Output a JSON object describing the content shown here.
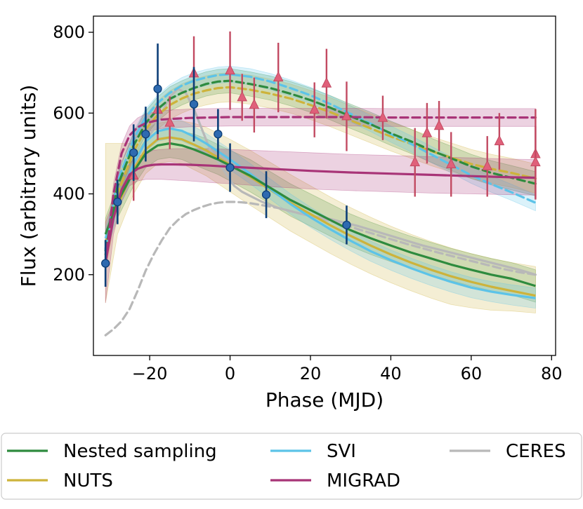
{
  "chart_data": {
    "type": "line",
    "xlabel": "Phase (MJD)",
    "ylabel": "Flux (arbitrary units)",
    "xlim": [
      -34,
      81
    ],
    "ylim": [
      0,
      840
    ],
    "xticks": [
      -20,
      0,
      20,
      40,
      60,
      80
    ],
    "xtick_labels": [
      "−20",
      "0",
      "20",
      "40",
      "60",
      "80"
    ],
    "yticks": [
      200,
      400,
      600,
      800
    ],
    "ytick_labels": [
      "200",
      "400",
      "600",
      "800"
    ],
    "grid": false,
    "legend_position": "bottom",
    "colors": {
      "nested": "#2e8b3e",
      "nuts": "#cdb33b",
      "svi": "#5cc3e8",
      "migrad": "#a83477",
      "ceres": "#b8b8b8",
      "blue_points": "#2e6ab0",
      "blue_edge": "#0d3f78",
      "red_points": "#e0607a",
      "red_err": "#c24a62"
    },
    "series": [
      {
        "key": "nested",
        "name": "Nested sampling",
        "band": "blue",
        "x": [
          -31,
          -28,
          -24,
          -21,
          -18,
          -15,
          -12,
          -9,
          -6,
          -3,
          0,
          5,
          10,
          15,
          20,
          25,
          30,
          35,
          40,
          45,
          50,
          55,
          60,
          65,
          70,
          76
        ],
        "values": [
          300,
          380,
          455,
          500,
          520,
          525,
          520,
          510,
          498,
          485,
          470,
          445,
          415,
          385,
          360,
          335,
          310,
          290,
          272,
          255,
          240,
          225,
          212,
          200,
          190,
          172
        ],
        "lower": [
          260,
          340,
          420,
          465,
          485,
          490,
          485,
          472,
          460,
          448,
          432,
          405,
          375,
          345,
          320,
          295,
          270,
          250,
          232,
          215,
          200,
          185,
          172,
          160,
          150,
          132
        ],
        "upper": [
          340,
          420,
          490,
          535,
          555,
          560,
          555,
          548,
          537,
          522,
          508,
          485,
          455,
          425,
          400,
          375,
          350,
          330,
          312,
          295,
          280,
          265,
          252,
          240,
          230,
          212
        ]
      },
      {
        "key": "nested",
        "name": "Nested sampling (red band)",
        "band": "red",
        "dashed": true,
        "x": [
          -31,
          -28,
          -24,
          -21,
          -18,
          -15,
          -12,
          -9,
          -6,
          -3,
          0,
          5,
          10,
          15,
          20,
          25,
          30,
          35,
          40,
          45,
          50,
          55,
          60,
          65,
          70,
          76
        ],
        "values": [
          260,
          420,
          520,
          575,
          610,
          635,
          650,
          662,
          672,
          678,
          680,
          672,
          662,
          648,
          632,
          613,
          592,
          572,
          550,
          530,
          508,
          488,
          468,
          452,
          440,
          425
        ],
        "lower": [
          230,
          390,
          490,
          545,
          580,
          605,
          620,
          632,
          642,
          648,
          650,
          642,
          632,
          618,
          602,
          583,
          562,
          542,
          520,
          500,
          478,
          458,
          438,
          422,
          410,
          395
        ],
        "upper": [
          290,
          450,
          550,
          605,
          640,
          665,
          680,
          692,
          702,
          708,
          710,
          702,
          692,
          678,
          662,
          643,
          622,
          602,
          580,
          560,
          538,
          518,
          498,
          482,
          470,
          455
        ]
      },
      {
        "key": "nuts",
        "name": "NUTS",
        "band": "blue",
        "x": [
          -31,
          -28,
          -24,
          -21,
          -18,
          -15,
          -12,
          -9,
          -6,
          -3,
          0,
          5,
          10,
          15,
          20,
          25,
          30,
          35,
          40,
          45,
          50,
          55,
          60,
          65,
          70,
          76
        ],
        "values": [
          280,
          370,
          460,
          510,
          535,
          540,
          535,
          522,
          508,
          490,
          472,
          442,
          410,
          378,
          350,
          322,
          296,
          272,
          250,
          230,
          212,
          196,
          182,
          170,
          160,
          148
        ],
        "lower": [
          130,
          300,
          400,
          450,
          475,
          480,
          475,
          460,
          445,
          425,
          405,
          372,
          340,
          308,
          280,
          252,
          226,
          202,
          180,
          160,
          142,
          126,
          118,
          112,
          110,
          105
        ],
        "upper": [
          525,
          525,
          525,
          560,
          575,
          580,
          580,
          575,
          565,
          550,
          535,
          508,
          478,
          448,
          420,
          392,
          366,
          342,
          320,
          300,
          282,
          266,
          252,
          240,
          230,
          220
        ]
      },
      {
        "key": "nuts",
        "name": "NUTS (red band)",
        "band": "red",
        "dashed": true,
        "x": [
          -31,
          -28,
          -24,
          -21,
          -18,
          -15,
          -12,
          -9,
          -6,
          -3,
          0,
          5,
          10,
          15,
          20,
          25,
          30,
          35,
          40,
          45,
          50,
          55,
          60,
          65,
          70,
          76
        ],
        "values": [
          250,
          400,
          505,
          560,
          595,
          620,
          636,
          648,
          656,
          662,
          664,
          658,
          648,
          636,
          620,
          602,
          582,
          562,
          542,
          524,
          506,
          490,
          474,
          462,
          452,
          438
        ],
        "lower": [
          215,
          365,
          470,
          525,
          560,
          585,
          600,
          612,
          620,
          626,
          628,
          622,
          612,
          600,
          584,
          566,
          546,
          526,
          506,
          488,
          470,
          454,
          438,
          426,
          416,
          402
        ],
        "upper": [
          285,
          435,
          540,
          595,
          630,
          655,
          672,
          684,
          692,
          698,
          700,
          694,
          684,
          672,
          656,
          638,
          618,
          598,
          578,
          560,
          542,
          526,
          510,
          498,
          488,
          474
        ]
      },
      {
        "key": "svi",
        "name": "SVI",
        "band": "blue",
        "x": [
          -31,
          -28,
          -24,
          -21,
          -18,
          -15,
          -12,
          -9,
          -6,
          -3,
          0,
          5,
          10,
          15,
          20,
          25,
          30,
          35,
          40,
          45,
          50,
          55,
          60,
          65,
          70,
          76
        ],
        "values": [
          290,
          380,
          475,
          530,
          555,
          562,
          556,
          542,
          525,
          505,
          485,
          450,
          412,
          375,
          342,
          312,
          284,
          258,
          236,
          216,
          198,
          182,
          168,
          158,
          150,
          142
        ],
        "lower": [
          265,
          355,
          450,
          505,
          530,
          537,
          531,
          517,
          500,
          480,
          460,
          425,
          387,
          350,
          317,
          287,
          259,
          233,
          211,
          191,
          173,
          157,
          143,
          133,
          125,
          117
        ],
        "upper": [
          315,
          405,
          500,
          555,
          580,
          587,
          581,
          567,
          550,
          530,
          510,
          475,
          437,
          400,
          367,
          337,
          309,
          283,
          261,
          241,
          223,
          207,
          193,
          183,
          175,
          167
        ]
      },
      {
        "key": "svi",
        "name": "SVI (red band)",
        "band": "red",
        "dashed": true,
        "x": [
          -31,
          -28,
          -24,
          -21,
          -18,
          -15,
          -12,
          -9,
          -6,
          -3,
          0,
          5,
          10,
          15,
          20,
          25,
          30,
          35,
          40,
          45,
          50,
          55,
          60,
          65,
          70,
          76
        ],
        "values": [
          265,
          430,
          535,
          590,
          625,
          650,
          668,
          680,
          688,
          694,
          696,
          690,
          678,
          662,
          644,
          622,
          598,
          574,
          548,
          524,
          498,
          472,
          446,
          424,
          404,
          378
        ],
        "lower": [
          245,
          410,
          515,
          570,
          605,
          630,
          648,
          660,
          668,
          674,
          676,
          670,
          658,
          642,
          624,
          602,
          578,
          554,
          528,
          504,
          478,
          452,
          426,
          404,
          384,
          358
        ],
        "upper": [
          285,
          450,
          555,
          610,
          645,
          670,
          688,
          700,
          708,
          714,
          716,
          710,
          698,
          682,
          664,
          642,
          618,
          594,
          568,
          544,
          518,
          492,
          466,
          444,
          424,
          398
        ]
      },
      {
        "key": "migrad",
        "name": "MIGRAD",
        "band": "blue",
        "x": [
          -31,
          -29,
          -27,
          -25,
          -23,
          -21,
          -19,
          -17,
          -14,
          -10,
          -5,
          0,
          10,
          20,
          30,
          40,
          50,
          60,
          70,
          76
        ],
        "values": [
          230,
          340,
          410,
          448,
          462,
          469,
          472,
          473,
          473,
          472,
          470,
          467,
          462,
          457,
          453,
          450,
          447,
          444,
          441,
          440
        ],
        "lower": [
          130,
          300,
          380,
          420,
          432,
          436,
          436,
          436,
          434,
          432,
          428,
          425,
          418,
          412,
          408,
          405,
          402,
          400,
          398,
          397
        ],
        "upper": [
          330,
          380,
          440,
          476,
          492,
          500,
          508,
          510,
          512,
          512,
          512,
          510,
          506,
          502,
          498,
          495,
          492,
          489,
          486,
          485
        ]
      },
      {
        "key": "migrad",
        "name": "MIGRAD (red band)",
        "band": "red",
        "dashed": true,
        "x": [
          -31,
          -29,
          -27,
          -25,
          -23,
          -21,
          -19,
          -17,
          -14,
          -10,
          -5,
          0,
          10,
          20,
          30,
          40,
          50,
          60,
          70,
          76
        ],
        "values": [
          230,
          400,
          500,
          545,
          565,
          575,
          580,
          584,
          586,
          588,
          589,
          590,
          590,
          590,
          590,
          589,
          589,
          589,
          589,
          589
        ],
        "lower": [
          200,
          375,
          478,
          522,
          542,
          552,
          558,
          562,
          564,
          566,
          567,
          568,
          568,
          568,
          568,
          567,
          567,
          567,
          567,
          567
        ],
        "upper": [
          260,
          425,
          522,
          568,
          588,
          598,
          602,
          606,
          608,
          610,
          611,
          612,
          612,
          612,
          612,
          611,
          611,
          611,
          611,
          611
        ]
      },
      {
        "key": "ceres",
        "name": "CERES",
        "band": "blue",
        "x": [
          -31,
          -29,
          -27,
          -25,
          -23,
          -21,
          -19,
          -17,
          -15,
          -13,
          -11,
          -9,
          -7,
          -5,
          -3,
          -1,
          1,
          3,
          5,
          8,
          12,
          16,
          20,
          24,
          28,
          32,
          36,
          40,
          44,
          48,
          52,
          56,
          60,
          64,
          68,
          72,
          76
        ],
        "values": [
          250,
          320,
          390,
          445,
          490,
          530,
          560,
          600,
          640,
          660,
          650,
          610,
          560,
          510,
          480,
          450,
          420,
          405,
          395,
          380,
          365,
          355,
          345,
          340,
          330,
          320,
          308,
          296,
          284,
          272,
          262,
          252,
          242,
          232,
          222,
          212,
          200
        ]
      },
      {
        "key": "ceres",
        "name": "CERES (red band)",
        "band": "red",
        "dashed": true,
        "x": [
          -31,
          -29,
          -27,
          -25,
          -23,
          -21,
          -19,
          -17,
          -15,
          -13,
          -11,
          -9,
          -7,
          -5,
          -3,
          -1,
          1,
          3,
          5,
          8,
          12,
          16,
          20,
          24,
          28,
          32,
          36,
          40,
          44,
          48,
          52,
          56,
          60,
          64,
          68,
          72,
          76
        ],
        "values": [
          50,
          65,
          85,
          115,
          160,
          210,
          250,
          285,
          315,
          335,
          350,
          360,
          368,
          374,
          378,
          380,
          380,
          379,
          377,
          372,
          365,
          355,
          345,
          335,
          325,
          312,
          300,
          288,
          276,
          265,
          254,
          244,
          234,
          224,
          214,
          206,
          200
        ]
      }
    ],
    "points_blue": {
      "marker": "circle",
      "x": [
        -31,
        -28,
        -24,
        -21,
        -18,
        -9,
        -3,
        0,
        9,
        29
      ],
      "y": [
        228,
        380,
        502,
        548,
        660,
        622,
        548,
        465,
        398,
        323
      ],
      "yerr": [
        58,
        55,
        70,
        68,
        112,
        92,
        62,
        60,
        58,
        48
      ]
    },
    "points_red": {
      "marker": "triangle",
      "x": [
        -24,
        -18,
        -15,
        -9,
        0,
        3,
        6,
        12,
        21,
        24,
        29,
        38,
        46,
        49,
        52,
        55,
        64,
        67,
        76,
        76
      ],
      "y": [
        445,
        608,
        576,
        698,
        705,
        639,
        620,
        688,
        608,
        673,
        592,
        588,
        478,
        550,
        568,
        473,
        468,
        530,
        498,
        478
      ],
      "yerr": [
        62,
        75,
        65,
        92,
        97,
        58,
        68,
        86,
        68,
        86,
        86,
        55,
        85,
        75,
        62,
        80,
        75,
        70,
        112,
        90
      ]
    },
    "legend": {
      "entries": [
        {
          "key": "nested",
          "label": "Nested sampling"
        },
        {
          "key": "svi",
          "label": "SVI"
        },
        {
          "key": "ceres",
          "label": "CERES"
        },
        {
          "key": "nuts",
          "label": "NUTS"
        },
        {
          "key": "migrad",
          "label": "MIGRAD"
        }
      ]
    }
  }
}
